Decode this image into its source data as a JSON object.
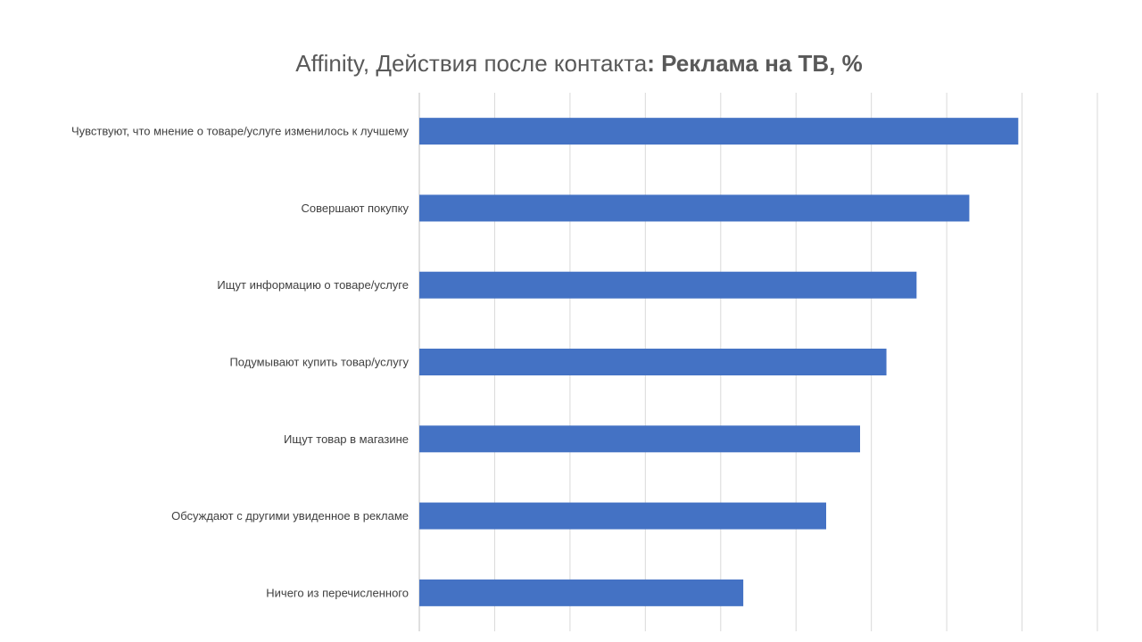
{
  "title": {
    "main": "Affinity, Действия после контакта",
    "colon": ": ",
    "bold": "Реклама на ТВ, %"
  },
  "colors": {
    "bar": "#4472C4",
    "grid": "#D9D9D9",
    "axis": "#BFBFBF",
    "title": "#595959",
    "label": "#404040"
  },
  "chart_data": {
    "type": "bar",
    "orientation": "horizontal",
    "categories": [
      "Чувствуют, что мнение о товаре/услуге изменилось к лучшему",
      "Совершают покупку",
      "Ищут информацию о товаре/услуге",
      "Подумывают купить товар/услугу",
      "Ищут товар в магазине",
      "Обсуждают с другими увиденное в рекламе",
      "Ничего из перечисленного"
    ],
    "values": [
      159,
      146,
      132,
      124,
      117,
      108,
      86
    ],
    "xlim": [
      0,
      180
    ],
    "grid": true,
    "legend": false
  }
}
